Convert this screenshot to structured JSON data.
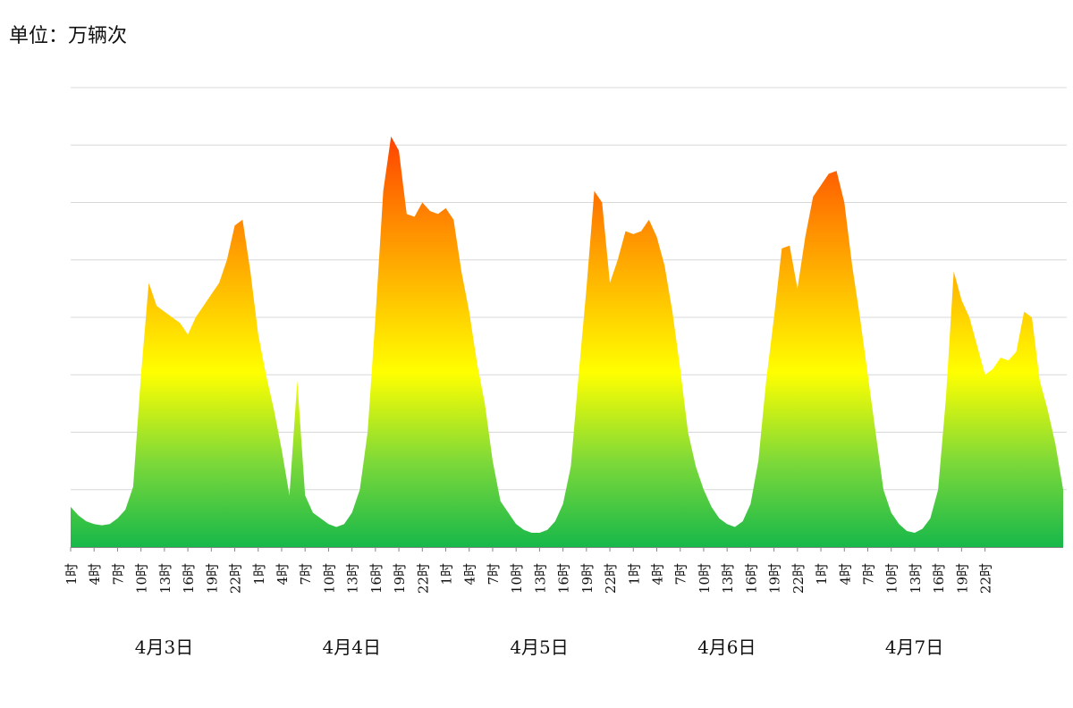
{
  "unit_label": "单位：万辆次",
  "colors": {
    "gradient_top": "#ff1a00",
    "gradient_upper": "#ff8c00",
    "gradient_mid": "#ffff00",
    "gradient_lower": "#7ad83a",
    "gradient_bottom": "#17b84a",
    "grid": "#d8d8d8",
    "axis": "#888888"
  },
  "chart_data": {
    "type": "area",
    "title": "",
    "xlabel": "",
    "ylabel": "",
    "grid": true,
    "legend": "none",
    "ylim": [
      0,
      8
    ],
    "y_gridlines": [
      1,
      2,
      3,
      4,
      5,
      6,
      7,
      8
    ],
    "days": [
      "4月3日",
      "4月4日",
      "4月5日",
      "4月6日",
      "4月7日"
    ],
    "hours_per_day": 24,
    "tick_every_hours": 3,
    "tick_labels": [
      "1时",
      "4时",
      "7时",
      "10时",
      "13时",
      "16时",
      "19时",
      "22时"
    ],
    "values": [
      0.7,
      0.55,
      0.45,
      0.4,
      0.38,
      0.4,
      0.5,
      0.65,
      1.05,
      3.0,
      4.6,
      4.2,
      4.1,
      4.0,
      3.9,
      3.7,
      4.0,
      4.2,
      4.4,
      4.6,
      5.0,
      5.6,
      5.7,
      4.8,
      3.7,
      3.0,
      2.4,
      1.7,
      0.9,
      2.9,
      0.9,
      0.6,
      0.5,
      0.4,
      0.35,
      0.4,
      0.6,
      1.0,
      2.0,
      4.0,
      6.2,
      7.15,
      6.9,
      5.8,
      5.75,
      6.0,
      5.85,
      5.8,
      5.9,
      5.7,
      4.8,
      4.1,
      3.2,
      2.5,
      1.5,
      0.8,
      0.6,
      0.4,
      0.3,
      0.25,
      0.25,
      0.3,
      0.45,
      0.75,
      1.4,
      3.0,
      4.5,
      6.2,
      6.0,
      4.6,
      5.0,
      5.5,
      5.45,
      5.5,
      5.7,
      5.4,
      4.9,
      4.1,
      3.1,
      2.0,
      1.4,
      1.0,
      0.7,
      0.5,
      0.4,
      0.35,
      0.45,
      0.75,
      1.5,
      2.9,
      4.0,
      5.2,
      5.25,
      4.5,
      5.4,
      6.1,
      6.3,
      6.5,
      6.55,
      6.0,
      4.9,
      4.0,
      3.0,
      2.0,
      1.0,
      0.6,
      0.4,
      0.28,
      0.25,
      0.32,
      0.5,
      1.0,
      2.6,
      4.8,
      4.3,
      4.0,
      3.5,
      3.0,
      3.1,
      3.3,
      3.25,
      3.4,
      4.1,
      4.0,
      2.9,
      2.4,
      1.8,
      1.0
    ]
  }
}
